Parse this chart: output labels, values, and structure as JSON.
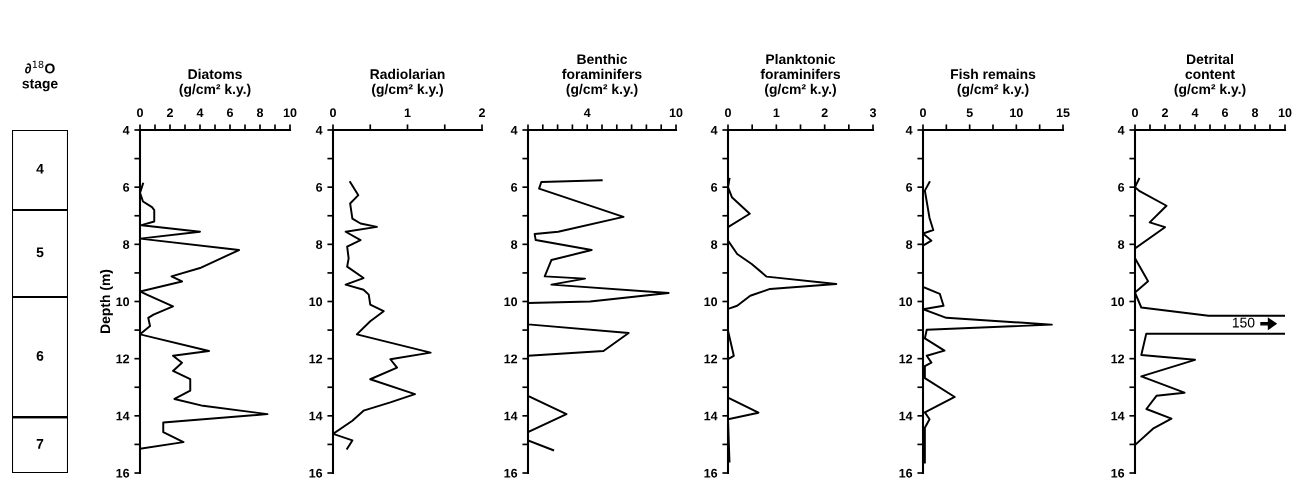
{
  "chart_data": [
    {
      "type": "other",
      "title": "∂$^{18}$O\nstage",
      "annotations": [
        "4",
        "5",
        "6",
        "7"
      ]
    },
    {
      "type": "line",
      "orientation": "horizontal",
      "title": "Diatoms\n(g/cm² k.y.)",
      "ylabel": "Depth (m)",
      "xlim": [
        0,
        10
      ],
      "xticks": [
        0,
        {
          "value": 1,
          "label": null
        },
        2,
        {
          "value": 3,
          "label": null
        },
        4,
        {
          "value": 5,
          "label": null
        },
        6,
        {
          "value": 7,
          "label": null
        },
        8,
        {
          "value": 9,
          "label": null
        },
        10
      ],
      "ylim": [
        16,
        4
      ],
      "yticks": [
        4,
        {
          "value": 5,
          "label": null
        },
        6,
        {
          "value": 7,
          "label": null
        },
        8,
        {
          "value": 9,
          "label": null
        },
        10,
        {
          "value": 11,
          "label": null
        },
        12,
        {
          "value": 13,
          "label": null
        },
        14,
        {
          "value": 15,
          "label": null
        },
        16
      ],
      "series": [
        {
          "color": "#000000",
          "x": [
            5.88,
            6.2,
            6.5,
            6.7,
            6.8,
            7.2,
            7.33,
            7.56,
            7.8,
            8.2,
            8.83,
            9.12,
            9.3,
            9.65,
            9.76,
            10.17,
            10.46,
            10.57,
            10.86,
            11.15,
            11.73,
            11.9,
            12.14,
            12.43,
            12.72,
            13.12,
            13.41,
            13.65,
            13.94,
            14.23,
            14.57,
            14.92,
            15.15
          ],
          "values": [
            0.2,
            0,
            0.2,
            0.8,
            0.95,
            0.95,
            0.1,
            4.0,
            0,
            6.6,
            4.0,
            2.1,
            2.8,
            0,
            0.45,
            2.2,
            0.9,
            0.55,
            0.67,
            0,
            4.6,
            2.2,
            2.8,
            2.2,
            3.35,
            3.35,
            2.3,
            4.2,
            8.5,
            1.55,
            1.55,
            2.9,
            0
          ]
        }
      ]
    },
    {
      "type": "line",
      "orientation": "horizontal",
      "title": "Radiolarian\n(g/cm² k.y.)",
      "xlim": [
        0,
        2
      ],
      "xticks": [
        0,
        {
          "value": 0.5,
          "label": null
        },
        1,
        {
          "value": 1.5,
          "label": null
        },
        2
      ],
      "ylim": [
        16,
        4
      ],
      "yticks": [
        4,
        {
          "value": 5,
          "label": null
        },
        6,
        {
          "value": 7,
          "label": null
        },
        8,
        {
          "value": 9,
          "label": null
        },
        10,
        {
          "value": 11,
          "label": null
        },
        12,
        {
          "value": 13,
          "label": null
        },
        14,
        {
          "value": 15,
          "label": null
        },
        16
      ],
      "series": [
        {
          "color": "#000000",
          "x": [
            5.82,
            6.28,
            6.57,
            7.1,
            7.27,
            7.39,
            7.56,
            7.85,
            8.08,
            8.49,
            8.78,
            9.18,
            9.41,
            9.59,
            9.76,
            10.11,
            10.34,
            10.69,
            11.15,
            11.79,
            12.02,
            12.31,
            12.72,
            13.24,
            13.53,
            13.82,
            14.17,
            14.63,
            14.86,
            15.15
          ],
          "values": [
            0.23,
            0.34,
            0.23,
            0.26,
            0.37,
            0.59,
            0.17,
            0.37,
            0.19,
            0.21,
            0.19,
            0.41,
            0.17,
            0.41,
            0.48,
            0.5,
            0.68,
            0.5,
            0.32,
            1.31,
            0.77,
            0.86,
            0.5,
            1.1,
            0.77,
            0.41,
            0.26,
            0,
            0.26,
            0.19
          ]
        }
      ]
    },
    {
      "type": "line",
      "orientation": "horizontal",
      "title": "Benthic\nforaminifers\n(g/cm² k.y.)",
      "xlim": [
        0,
        10
      ],
      "xticks": [
        {
          "value": 0,
          "label": null
        },
        {
          "value": 1,
          "label": null
        },
        {
          "value": 2,
          "label": null
        },
        {
          "value": 3,
          "label": null
        },
        4,
        {
          "value": 5,
          "label": null
        },
        {
          "value": 6,
          "label": null
        },
        {
          "value": 7,
          "label": null
        },
        {
          "value": 8,
          "label": null
        },
        {
          "value": 9,
          "label": null
        },
        10
      ],
      "ylim": [
        16,
        4
      ],
      "yticks": [
        4,
        {
          "value": 5,
          "label": null
        },
        6,
        {
          "value": 7,
          "label": null
        },
        8,
        {
          "value": 9,
          "label": null
        },
        10,
        {
          "value": 11,
          "label": null
        },
        12,
        {
          "value": 13,
          "label": null
        },
        14,
        {
          "value": 15,
          "label": null
        },
        16
      ],
      "series": [
        {
          "color": "#000000",
          "x": [
            5.76,
            5.82,
            6.05,
            7.04,
            7.56,
            7.64,
            7.85,
            8.2,
            8.55,
            9.12,
            9.2,
            9.41,
            9.7,
            10.0,
            10.05,
            10.8,
            11.1,
            11.73,
            11.9,
            13.3,
            13.94,
            14.57,
            14.86,
            15.2
          ],
          "values": [
            4.98,
            0.9,
            0.75,
            6.45,
            2.04,
            0.45,
            0.52,
            4.3,
            1.58,
            1.13,
            3.85,
            1.58,
            9.5,
            4.2,
            0,
            0,
            6.8,
            5.1,
            0,
            0,
            2.6,
            0,
            0,
            1.7
          ]
        }
      ]
    },
    {
      "type": "line",
      "orientation": "horizontal",
      "title": "Planktonic\nforaminifers\n(g/cm² k.y.)",
      "xlim": [
        0,
        3
      ],
      "xticks": [
        0,
        {
          "value": 0.5,
          "label": null
        },
        1,
        {
          "value": 1.5,
          "label": null
        },
        2,
        {
          "value": 2.5,
          "label": null
        },
        3
      ],
      "ylim": [
        16,
        4
      ],
      "yticks": [
        4,
        {
          "value": 5,
          "label": null
        },
        6,
        {
          "value": 7,
          "label": null
        },
        8,
        {
          "value": 9,
          "label": null
        },
        10,
        {
          "value": 11,
          "label": null
        },
        12,
        {
          "value": 13,
          "label": null
        },
        14,
        {
          "value": 15,
          "label": null
        },
        16
      ],
      "series": [
        {
          "color": "#000000",
          "x": [
            5.71,
            6.0,
            6.35,
            6.93,
            7.4,
            7.87,
            8.34,
            8.69,
            9.13,
            9.39,
            9.56,
            9.8,
            10.15,
            10.26,
            11.02,
            11.9,
            12.02,
            13.36,
            13.89,
            14.12,
            15.6
          ],
          "values": [
            0.03,
            0,
            0.08,
            0.45,
            0,
            0,
            0.19,
            0.49,
            0.8,
            2.24,
            0.87,
            0.46,
            0.19,
            0,
            0,
            0.12,
            0,
            0,
            0.63,
            0,
            0.03
          ]
        }
      ]
    },
    {
      "type": "line",
      "orientation": "horizontal",
      "title": "Fish remains\n(g/cm² k.y.)",
      "xlim": [
        0,
        15
      ],
      "xticks": [
        0,
        {
          "value": 2.5,
          "label": null
        },
        5,
        {
          "value": 7.5,
          "label": null
        },
        10,
        {
          "value": 12.5,
          "label": null
        },
        15
      ],
      "ylim": [
        16,
        4
      ],
      "yticks": [
        4,
        {
          "value": 5,
          "label": null
        },
        6,
        {
          "value": 7,
          "label": null
        },
        8,
        {
          "value": 9,
          "label": null
        },
        10,
        {
          "value": 11,
          "label": null
        },
        12,
        {
          "value": 13,
          "label": null
        },
        14,
        {
          "value": 15,
          "label": null
        },
        16
      ],
      "series": [
        {
          "color": "#000000",
          "x": [
            5.82,
            6.12,
            7.08,
            7.5,
            7.62,
            7.87,
            8.05,
            9.49,
            9.73,
            10.15,
            10.27,
            10.57,
            10.81,
            10.99,
            11.29,
            11.72,
            11.9,
            12.14,
            12.26,
            12.68,
            13.34,
            13.88,
            14.12,
            14.42,
            15.63
          ],
          "values": [
            0.7,
            0.2,
            0.7,
            1.1,
            0,
            0.9,
            0,
            0,
            1.8,
            2.2,
            0,
            2.5,
            13.8,
            0.4,
            0.2,
            2.3,
            0.4,
            0.9,
            0.2,
            0.2,
            3.4,
            0.2,
            0.7,
            0.2,
            0.2
          ]
        }
      ]
    },
    {
      "type": "line",
      "orientation": "horizontal",
      "title": "Detrital\ncontent\n(g/cm² k.y.)",
      "xlim": [
        0,
        10
      ],
      "xticks": [
        0,
        {
          "value": 1,
          "label": null
        },
        2,
        {
          "value": 3,
          "label": null
        },
        4,
        {
          "value": 5,
          "label": null
        },
        6,
        {
          "value": 7,
          "label": null
        },
        8,
        {
          "value": 9,
          "label": null
        },
        10
      ],
      "ylim": [
        16,
        4
      ],
      "yticks": [
        4,
        {
          "value": 5,
          "label": null
        },
        6,
        {
          "value": 7,
          "label": null
        },
        8,
        {
          "value": 9,
          "label": null
        },
        10,
        {
          "value": 11,
          "label": null
        },
        12,
        {
          "value": 13,
          "label": null
        },
        14,
        {
          "value": 15,
          "label": null
        },
        16
      ],
      "annotations": [
        "150"
      ],
      "series": [
        {
          "color": "#000000",
          "x": [
            5.71,
            6.0,
            6.14,
            6.65,
            7.23,
            7.4,
            8.14,
            8.49,
            9.29,
            9.69,
            10.21,
            10.5,
            10.5,
            null,
            11.13,
            11.13,
            11.87,
            12.04,
            12.62,
            13.19,
            13.3,
            13.76,
            14.1,
            14.45,
            15.02
          ],
          "values": [
            0.27,
            0,
            0.31,
            2.1,
            0.98,
            2.0,
            0,
            0,
            0.87,
            0,
            0.42,
            4.9,
            10,
            null,
            10,
            0.75,
            0.42,
            4.0,
            0.42,
            3.3,
            1.43,
            0.76,
            2.43,
            1.2,
            0
          ]
        }
      ]
    }
  ]
}
